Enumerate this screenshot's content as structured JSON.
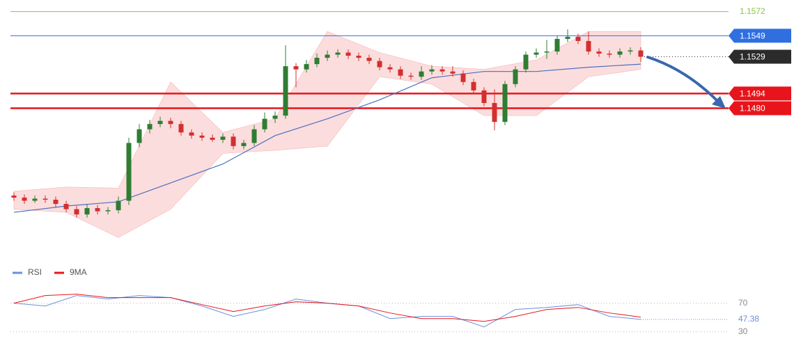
{
  "chart_data": {
    "type": "candlestick",
    "ylim": [
      1.1338,
      1.1583
    ],
    "yticks": [
      1.1572,
      1.1549,
      1.1529,
      1.1494,
      {
        "value": 1.148,
        "label": "1.1480"
      }
    ],
    "ytick_colors": [
      "#8bc34a",
      "#2f6fe0",
      "#2b2b2b",
      "#e8141b",
      "#e8141b"
    ],
    "ytick_styles": [
      "thin",
      "thin",
      "dotted",
      "bold",
      "bold"
    ],
    "ytick_boxed": [
      false,
      true,
      true,
      true,
      true
    ],
    "up_color": "#2e7d32",
    "down_color": "#d32f2f",
    "ohlc": [
      [
        1.1397,
        1.14,
        1.1392,
        1.1395
      ],
      [
        1.1395,
        1.1398,
        1.1389,
        1.1392
      ],
      [
        1.1392,
        1.1397,
        1.139,
        1.1394
      ],
      [
        1.1394,
        1.1397,
        1.139,
        1.1393
      ],
      [
        1.1393,
        1.1396,
        1.1386,
        1.1389
      ],
      [
        1.1389,
        1.1392,
        1.1381,
        1.1384
      ],
      [
        1.1384,
        1.1387,
        1.1376,
        1.1379
      ],
      [
        1.1379,
        1.1389,
        1.1376,
        1.1385
      ],
      [
        1.1385,
        1.1388,
        1.1379,
        1.1382
      ],
      [
        1.1382,
        1.1386,
        1.1379,
        1.1383
      ],
      [
        1.1383,
        1.1396,
        1.138,
        1.1392
      ],
      [
        1.1392,
        1.1452,
        1.1388,
        1.1447
      ],
      [
        1.1447,
        1.1465,
        1.1443,
        1.146
      ],
      [
        1.146,
        1.1469,
        1.1456,
        1.1465
      ],
      [
        1.1465,
        1.1472,
        1.1462,
        1.1468
      ],
      [
        1.1468,
        1.1471,
        1.1461,
        1.1465
      ],
      [
        1.1465,
        1.1468,
        1.1454,
        1.1457
      ],
      [
        1.1457,
        1.146,
        1.1451,
        1.1454
      ],
      [
        1.1454,
        1.1457,
        1.1449,
        1.1452
      ],
      [
        1.1452,
        1.1455,
        1.1448,
        1.145
      ],
      [
        1.145,
        1.1456,
        1.1447,
        1.1453
      ],
      [
        1.1453,
        1.1456,
        1.1441,
        1.1444
      ],
      [
        1.1444,
        1.145,
        1.1441,
        1.1447
      ],
      [
        1.1447,
        1.1464,
        1.1444,
        1.146
      ],
      [
        1.146,
        1.1476,
        1.1457,
        1.147
      ],
      [
        1.147,
        1.1477,
        1.1466,
        1.1473
      ],
      [
        1.1473,
        1.154,
        1.147,
        1.152
      ],
      [
        1.152,
        1.1523,
        1.15,
        1.1517
      ],
      [
        1.1517,
        1.1526,
        1.1514,
        1.1522
      ],
      [
        1.1522,
        1.1532,
        1.1519,
        1.1528
      ],
      [
        1.1528,
        1.1535,
        1.1525,
        1.1531
      ],
      [
        1.1531,
        1.1536,
        1.1528,
        1.1533
      ],
      [
        1.1533,
        1.1536,
        1.1527,
        1.153
      ],
      [
        1.153,
        1.1533,
        1.1525,
        1.1528
      ],
      [
        1.1528,
        1.1531,
        1.1522,
        1.1525
      ],
      [
        1.1525,
        1.1528,
        1.1516,
        1.1519
      ],
      [
        1.1519,
        1.1522,
        1.1514,
        1.1517
      ],
      [
        1.1517,
        1.152,
        1.1508,
        1.1511
      ],
      [
        1.1511,
        1.1514,
        1.1507,
        1.151
      ],
      [
        1.151,
        1.152,
        1.1507,
        1.1515
      ],
      [
        1.1515,
        1.1521,
        1.1512,
        1.1517
      ],
      [
        1.1517,
        1.152,
        1.1512,
        1.1515
      ],
      [
        1.1515,
        1.152,
        1.151,
        1.1513
      ],
      [
        1.1513,
        1.1516,
        1.1502,
        1.1505
      ],
      [
        1.1505,
        1.1508,
        1.1494,
        1.1497
      ],
      [
        1.1497,
        1.15,
        1.1482,
        1.1485
      ],
      [
        1.1485,
        1.1498,
        1.1459,
        1.1467
      ],
      [
        1.1467,
        1.1506,
        1.1464,
        1.1503
      ],
      [
        1.1503,
        1.152,
        1.15,
        1.1517
      ],
      [
        1.1517,
        1.1534,
        1.1514,
        1.1531
      ],
      [
        1.1531,
        1.1537,
        1.1528,
        1.1533
      ],
      [
        1.1533,
        1.1545,
        1.1527,
        1.1534
      ],
      [
        1.1534,
        1.1549,
        1.1531,
        1.1546
      ],
      [
        1.1546,
        1.1555,
        1.1543,
        1.1548
      ],
      [
        1.1548,
        1.1551,
        1.1541,
        1.1544
      ],
      [
        1.1544,
        1.1553,
        1.1531,
        1.1534
      ],
      [
        1.1534,
        1.1537,
        1.1529,
        1.1532
      ],
      [
        1.1532,
        1.1535,
        1.1528,
        1.1531
      ],
      [
        1.1531,
        1.1537,
        1.1528,
        1.1534
      ],
      [
        1.1534,
        1.1538,
        1.1531,
        1.1535
      ],
      [
        1.1535,
        1.1538,
        1.1524,
        1.1529
      ]
    ],
    "ma": {
      "color": "#4a6fc1",
      "x": [
        0,
        5,
        10,
        15,
        20,
        25,
        30,
        35,
        40,
        45,
        50,
        55,
        60
      ],
      "values": [
        1.1381,
        1.1387,
        1.1391,
        1.1409,
        1.1427,
        1.1454,
        1.147,
        1.1488,
        1.1509,
        1.1515,
        1.1515,
        1.1519,
        1.1522
      ]
    },
    "bands": {
      "color": "#fcd7d7",
      "x": [
        0,
        5,
        10,
        15,
        20,
        25,
        30,
        35,
        40,
        45,
        50,
        55,
        60
      ],
      "upper": [
        1.1401,
        1.1405,
        1.1404,
        1.1505,
        1.1457,
        1.147,
        1.1553,
        1.1533,
        1.152,
        1.1517,
        1.1526,
        1.1553,
        1.1553
      ],
      "lower": [
        1.1384,
        1.1381,
        1.1357,
        1.1384,
        1.1437,
        1.144,
        1.1444,
        1.151,
        1.1503,
        1.1473,
        1.1473,
        1.151,
        1.1517
      ]
    },
    "rsi": {
      "ylim": [
        17,
        95
      ],
      "yticks": [
        70,
        30
      ],
      "x": [
        0,
        3,
        6,
        9,
        12,
        15,
        18,
        21,
        24,
        27,
        30,
        33,
        36,
        39,
        42,
        45,
        48,
        51,
        54,
        57,
        60
      ],
      "series": [
        {
          "name": "RSI",
          "color": "#6b8fdc",
          "values": [
            70,
            66.1,
            80.7,
            75.9,
            80.7,
            77.8,
            66.1,
            51.5,
            61.2,
            75.9,
            70,
            66.1,
            48.5,
            51.5,
            51.5,
            36.8,
            61.2,
            64.1,
            68.0,
            51.5,
            47.38
          ]
        },
        {
          "name": "9MA",
          "color": "#e8141b",
          "values": [
            70,
            80.7,
            82.7,
            77.8,
            77.8,
            77.8,
            68.0,
            58.3,
            66.1,
            72.0,
            70,
            66.1,
            56.3,
            48.5,
            48.5,
            44.6,
            51.5,
            61.2,
            64.1,
            56.3,
            50.5
          ]
        }
      ]
    }
  }
}
